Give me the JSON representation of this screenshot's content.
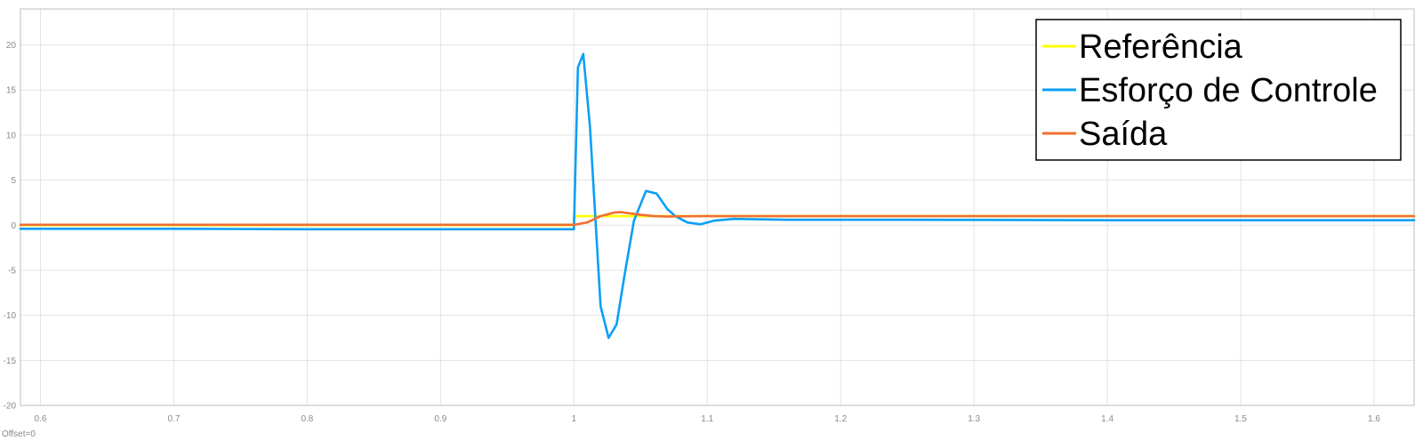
{
  "chart_data": {
    "type": "line",
    "title": "",
    "xlabel": "",
    "ylabel": "",
    "xlim": [
      0.585,
      1.63
    ],
    "ylim": [
      -20,
      24
    ],
    "grid": true,
    "legend_position": "top-right",
    "x_ticks": [
      {
        "value": 0.6,
        "label": "0.6"
      },
      {
        "value": 0.7,
        "label": "0.7"
      },
      {
        "value": 0.8,
        "label": "0.8"
      },
      {
        "value": 0.9,
        "label": "0.9"
      },
      {
        "value": 1.0,
        "label": "1"
      },
      {
        "value": 1.1,
        "label": "1.1"
      },
      {
        "value": 1.2,
        "label": "1.2"
      },
      {
        "value": 1.3,
        "label": "1.3"
      },
      {
        "value": 1.4,
        "label": "1.4"
      },
      {
        "value": 1.5,
        "label": "1.5"
      },
      {
        "value": 1.6,
        "label": "1.6"
      }
    ],
    "y_ticks": [
      {
        "value": 20,
        "label": "20"
      },
      {
        "value": 15,
        "label": "15"
      },
      {
        "value": 10,
        "label": "10"
      },
      {
        "value": 5,
        "label": "5"
      },
      {
        "value": 0,
        "label": "0"
      },
      {
        "value": -5,
        "label": "-5"
      },
      {
        "value": -10,
        "label": "-10"
      },
      {
        "value": -15,
        "label": "-15"
      },
      {
        "value": -20,
        "label": "-20"
      }
    ],
    "series": [
      {
        "name": "Referência",
        "color": "#ffff00",
        "x": [
          0.585,
          1.0,
          1.0,
          1.63
        ],
        "y": [
          0,
          0,
          1,
          1
        ]
      },
      {
        "name": "Esforço de Controle",
        "color": "#0b9ff5",
        "x": [
          0.585,
          0.7,
          0.8,
          0.9,
          1.0,
          1.003,
          1.007,
          1.012,
          1.02,
          1.026,
          1.032,
          1.038,
          1.045,
          1.054,
          1.062,
          1.07,
          1.076,
          1.085,
          1.095,
          1.105,
          1.12,
          1.16,
          1.25,
          1.4,
          1.63
        ],
        "y": [
          -0.4,
          -0.4,
          -0.45,
          -0.45,
          -0.45,
          17.5,
          19,
          11,
          -9,
          -12.5,
          -11,
          -5.5,
          0.5,
          3.8,
          3.5,
          1.8,
          1.0,
          0.3,
          0.1,
          0.5,
          0.7,
          0.6,
          0.6,
          0.55,
          0.55
        ]
      },
      {
        "name": "Saída",
        "color": "#f07030",
        "x": [
          0.585,
          0.9,
          1.0,
          1.01,
          1.02,
          1.03,
          1.035,
          1.04,
          1.05,
          1.06,
          1.07,
          1.08,
          1.1,
          1.2,
          1.63
        ],
        "y": [
          0.05,
          0.05,
          0.05,
          0.3,
          1.0,
          1.4,
          1.45,
          1.35,
          1.15,
          1.0,
          0.95,
          0.98,
          1.0,
          1.0,
          1.0
        ]
      }
    ]
  },
  "status": {
    "offset_text": "Offset=0"
  }
}
